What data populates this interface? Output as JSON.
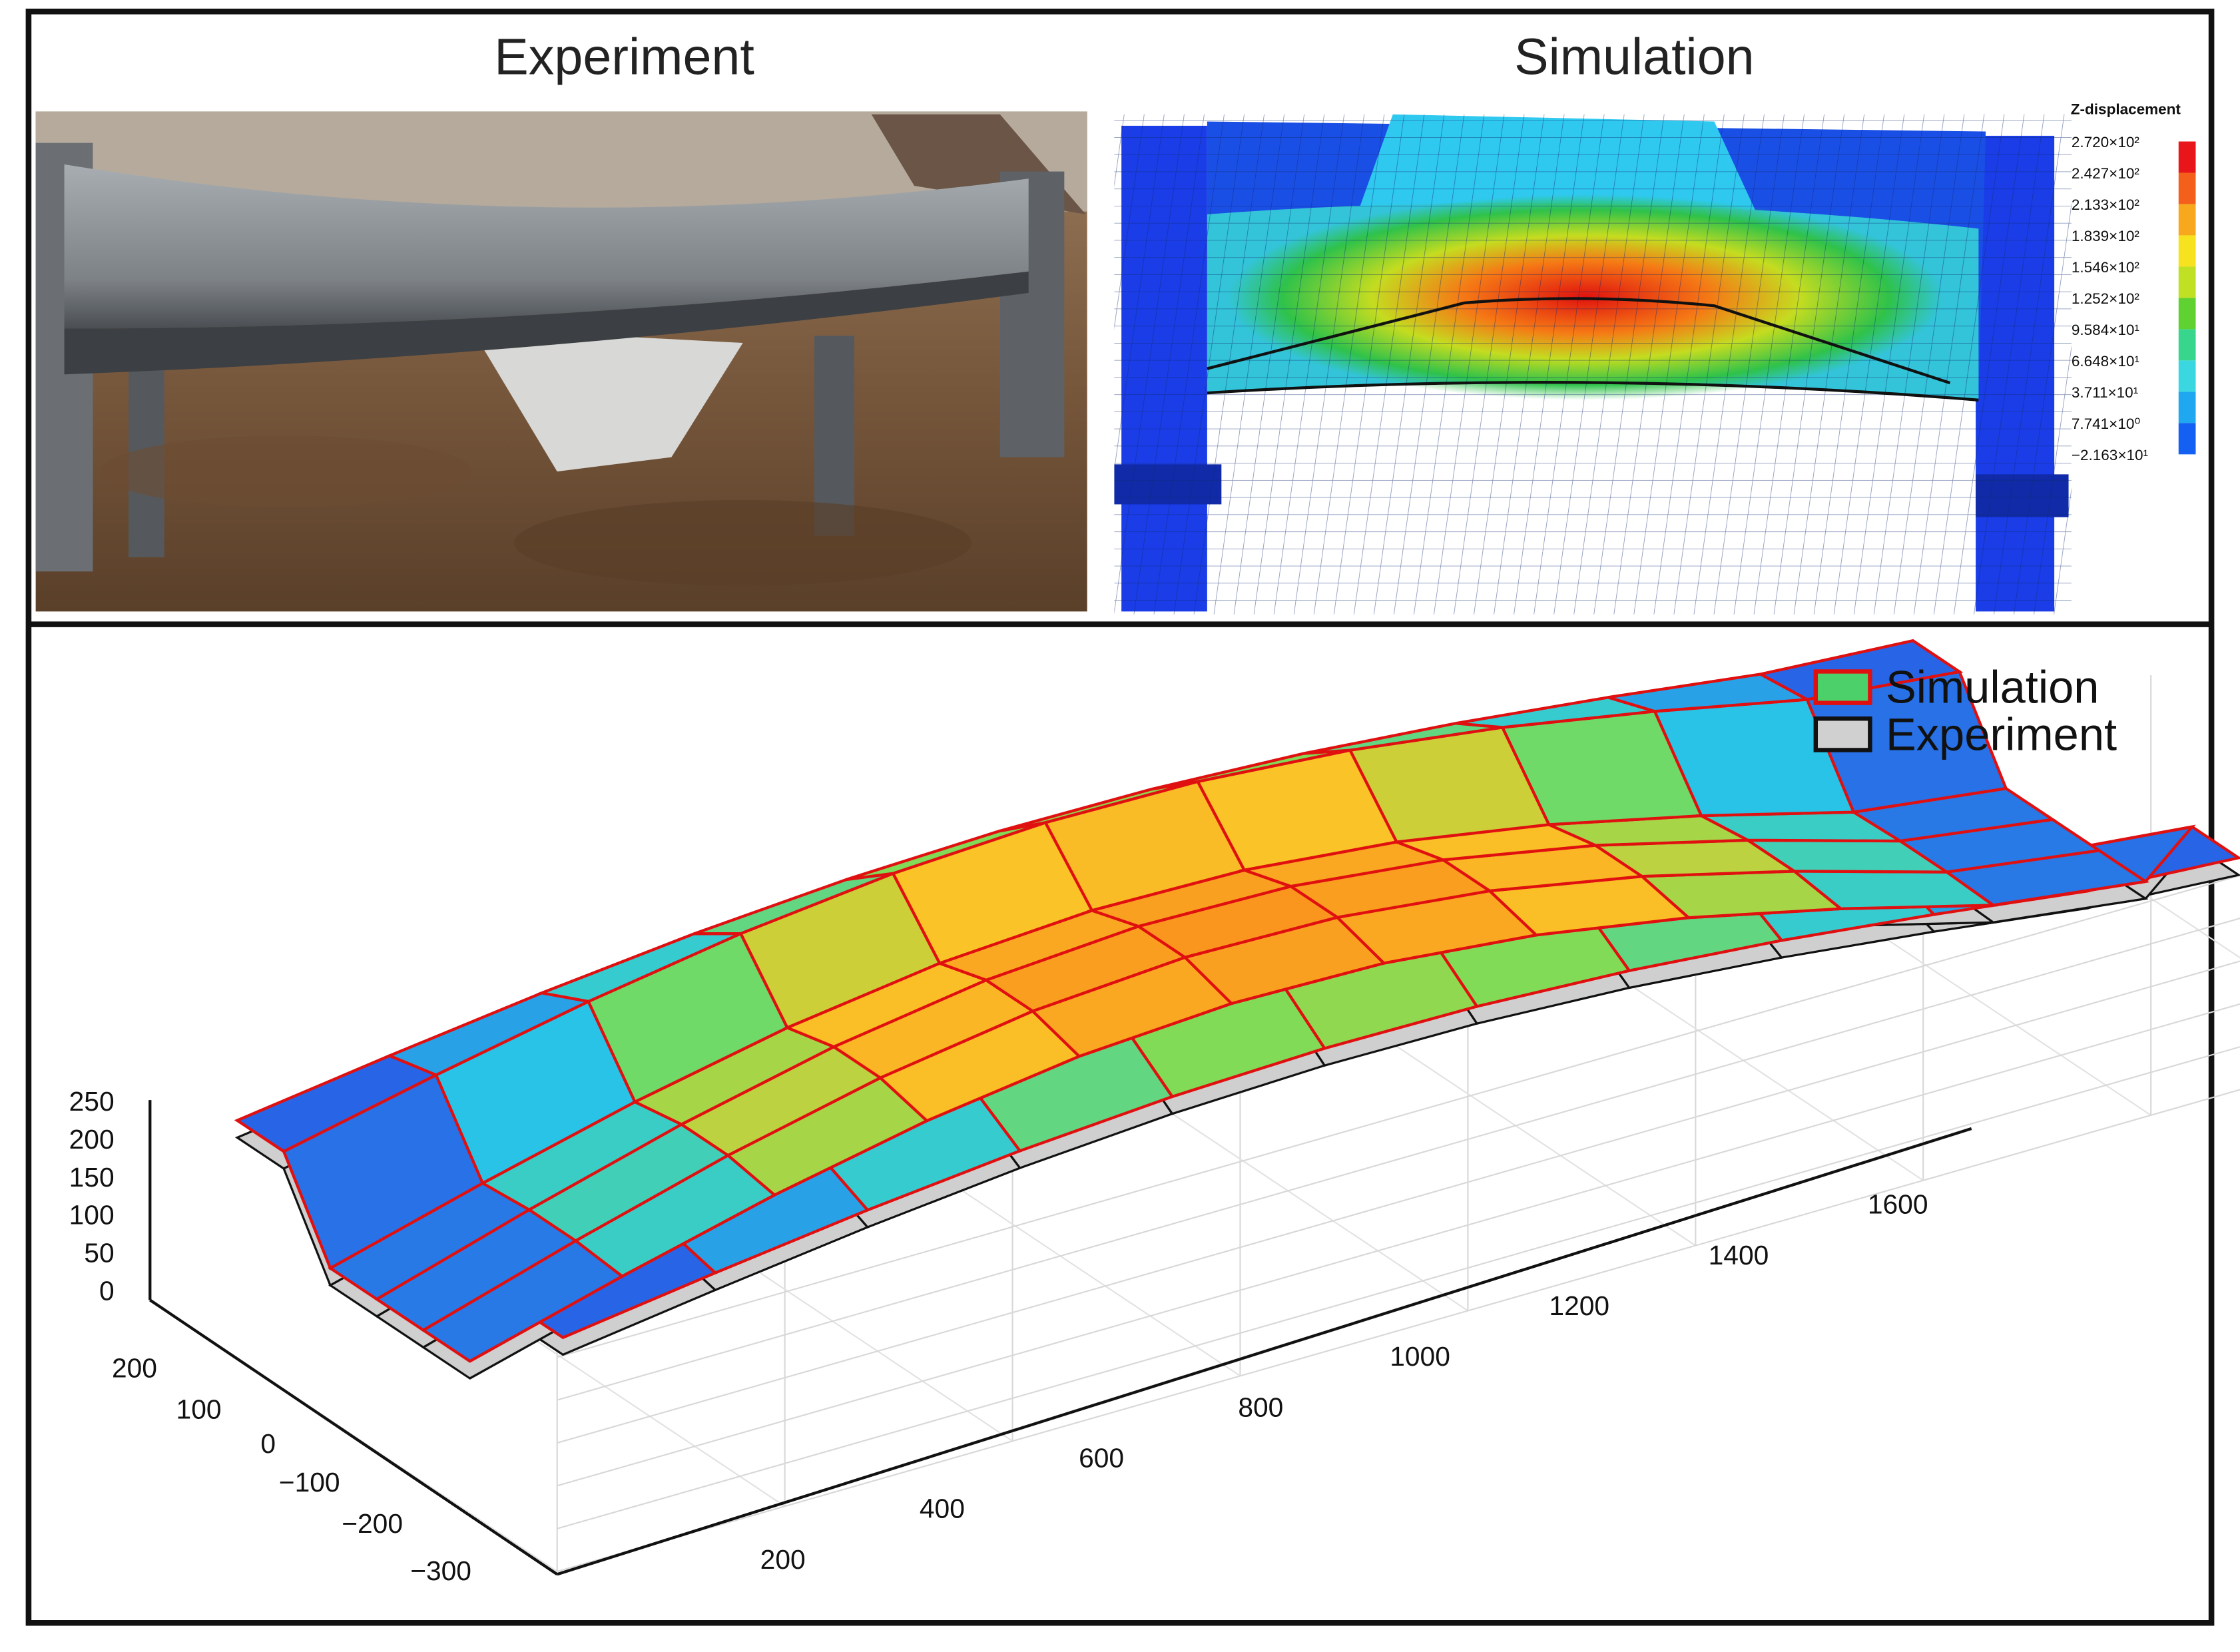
{
  "panels": {
    "experiment_title": "Experiment",
    "simulation_title": "Simulation"
  },
  "colorbar": {
    "title": "Z-displacement",
    "labels": [
      "2.720×10²",
      "2.427×10²",
      "2.133×10²",
      "1.839×10²",
      "1.546×10²",
      "1.252×10²",
      "9.584×10¹",
      "6.648×10¹",
      "3.711×10¹",
      "7.741×10⁰",
      "−2.163×10¹"
    ],
    "colors": [
      "#e8161a",
      "#f4601c",
      "#f8a81c",
      "#f6e21e",
      "#bfe023",
      "#5fd232",
      "#38d68c",
      "#3ad7e0",
      "#1fa8f0",
      "#1460f2"
    ]
  },
  "plot": {
    "legend": [
      "Simulation",
      "Experiment"
    ],
    "z_ticks": [
      "0",
      "50",
      "100",
      "150",
      "200",
      "250"
    ],
    "y_ticks": [
      "200",
      "100",
      "0",
      "−100",
      "−200",
      "−300"
    ],
    "x_ticks": [
      "200",
      "400",
      "600",
      "800",
      "1000",
      "1200",
      "1400",
      "1600"
    ]
  }
}
